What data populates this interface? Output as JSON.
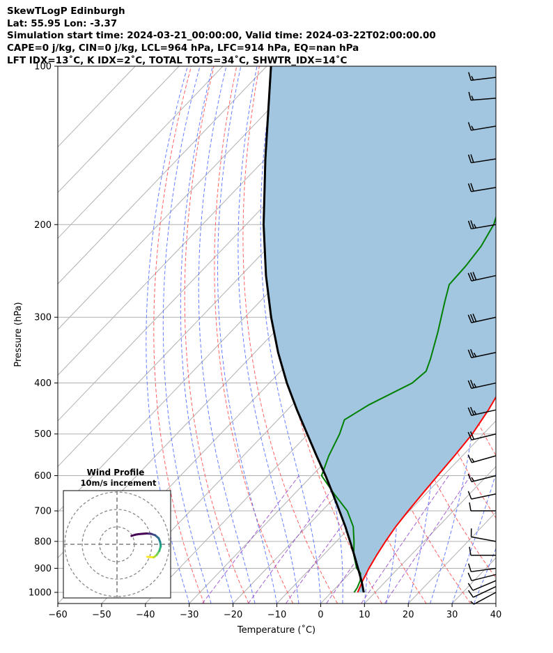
{
  "header": {
    "line1": "SkewTLogP Edinburgh",
    "line2": "Lat: 55.95   Lon: -3.37",
    "line3": "Simulation start time: 2024-03-21_00:00:00, Valid time: 2024-03-22T02:00:00.00",
    "line4": "CAPE=0 j/kg, CIN=0 j/kg, LCL=964 hPa, LFC=914 hPa, EQ=nan hPa",
    "line5": "LFT IDX=13˚C, K IDX=2˚C, TOTAL TOTS=34˚C, SHWTR_IDX=14˚C"
  },
  "chart_data": {
    "type": "line",
    "xlabel": "Temperature (˚C)",
    "ylabel": "Pressure (hPa)",
    "xlim": [
      -60,
      40
    ],
    "ylim": [
      1050,
      100
    ],
    "yscale": "log",
    "grid": true,
    "x_ticks": [
      -60,
      -50,
      -40,
      -30,
      -20,
      -10,
      0,
      10,
      20,
      30,
      40
    ],
    "x_tick_labels": [
      "−60",
      "−50",
      "−40",
      "−30",
      "−20",
      "−10",
      "0",
      "10",
      "20",
      "30",
      "40"
    ],
    "y_ticks": [
      1000,
      900,
      800,
      700,
      600,
      500,
      400,
      300,
      200,
      100
    ],
    "y_tick_labels": [
      "1000",
      "900",
      "800",
      "700",
      "600",
      "500",
      "400",
      "300",
      "200",
      "100"
    ],
    "series": [
      {
        "role": "temperature",
        "color": "#ff0000",
        "points": [
          [
            1000,
            6
          ],
          [
            950,
            4.6
          ],
          [
            900,
            3.3
          ],
          [
            850,
            2.2
          ],
          [
            800,
            1.2
          ],
          [
            750,
            0.3
          ],
          [
            700,
            -0.3
          ],
          [
            650,
            -0.8
          ],
          [
            600,
            -1.3
          ],
          [
            550,
            -1.8
          ],
          [
            500,
            -2.5
          ],
          [
            450,
            -4.1
          ],
          [
            400,
            -6.4
          ],
          [
            350,
            -8.1
          ],
          [
            300,
            -10.8
          ],
          [
            280,
            -12.5
          ],
          [
            260,
            -15.0
          ],
          [
            245,
            -16.6
          ],
          [
            230,
            -18.9
          ],
          [
            220,
            -19.7
          ],
          [
            210,
            -20.3
          ],
          [
            200,
            -22
          ],
          [
            180,
            -26
          ],
          [
            160,
            -30
          ],
          [
            150,
            -32.3
          ],
          [
            140,
            -35.3
          ],
          [
            120,
            -39.5
          ],
          [
            110,
            -43.3
          ],
          [
            105,
            -44.4
          ],
          [
            100,
            -44.4
          ]
        ]
      },
      {
        "role": "dewpoint",
        "color": "#008000",
        "points": [
          [
            1000,
            5.2
          ],
          [
            980,
            4.9
          ],
          [
            950,
            4.0
          ],
          [
            920,
            2.5
          ],
          [
            900,
            0.5
          ],
          [
            850,
            -3
          ],
          [
            800,
            -6
          ],
          [
            750,
            -9.4
          ],
          [
            700,
            -14.2
          ],
          [
            650,
            -20.9
          ],
          [
            600,
            -27.8
          ],
          [
            550,
            -30.5
          ],
          [
            500,
            -32.8
          ],
          [
            470,
            -34.8
          ],
          [
            440,
            -32.5
          ],
          [
            400,
            -27.4
          ],
          [
            380,
            -26.8
          ],
          [
            360,
            -28.5
          ],
          [
            320,
            -32.7
          ],
          [
            280,
            -37.8
          ],
          [
            260,
            -40.5
          ],
          [
            240,
            -40.8
          ],
          [
            220,
            -41.6
          ],
          [
            200,
            -43.5
          ],
          [
            180,
            -47
          ],
          [
            170,
            -48.5
          ],
          [
            160,
            -49.8
          ],
          [
            150,
            -49.6
          ],
          [
            140,
            -48.9
          ],
          [
            130,
            -48.7
          ],
          [
            120,
            -49.0
          ],
          [
            110,
            -49.5
          ],
          [
            100,
            -50.4
          ]
        ]
      },
      {
        "role": "parcel",
        "color": "#000000",
        "points": [
          [
            1000,
            7.4
          ],
          [
            964,
            5.2
          ],
          [
            950,
            4.3
          ],
          [
            900,
            0.8
          ],
          [
            850,
            -2.9
          ],
          [
            800,
            -6.9
          ],
          [
            750,
            -11.2
          ],
          [
            700,
            -16
          ],
          [
            650,
            -21.2
          ],
          [
            600,
            -26.9
          ],
          [
            550,
            -33.3
          ],
          [
            500,
            -40.2
          ],
          [
            450,
            -47.8
          ],
          [
            400,
            -56
          ],
          [
            350,
            -64.7
          ],
          [
            300,
            -74
          ],
          [
            250,
            -84.3
          ],
          [
            200,
            -96
          ],
          [
            150,
            -110
          ],
          [
            100,
            -129
          ]
        ]
      }
    ],
    "shaded_region": {
      "between": [
        "parcel",
        "temperature"
      ],
      "color": "#a2c6df"
    },
    "wind_barbs": [
      {
        "p": 1000,
        "u": -13,
        "v": -7
      },
      {
        "p": 975,
        "u": -17,
        "v": -8
      },
      {
        "p": 950,
        "u": -19,
        "v": -8
      },
      {
        "p": 925,
        "u": -20,
        "v": -5
      },
      {
        "p": 900,
        "u": -22,
        "v": -3
      },
      {
        "p": 850,
        "u": -24,
        "v": 0
      },
      {
        "p": 800,
        "u": -22,
        "v": 4
      },
      {
        "p": 700,
        "u": -24,
        "v": 0
      },
      {
        "p": 650,
        "u": -24,
        "v": -5
      },
      {
        "p": 600,
        "u": -28,
        "v": -7
      },
      {
        "p": 550,
        "u": -32,
        "v": -9
      },
      {
        "p": 500,
        "u": -37,
        "v": -9
      },
      {
        "p": 450,
        "u": -44,
        "v": -10
      },
      {
        "p": 400,
        "u": -50,
        "v": -11
      },
      {
        "p": 350,
        "u": -52,
        "v": -11
      },
      {
        "p": 300,
        "u": -54,
        "v": -12
      },
      {
        "p": 250,
        "u": -55,
        "v": -12
      },
      {
        "p": 200,
        "u": -47,
        "v": -8
      },
      {
        "p": 170,
        "u": -42,
        "v": -7
      },
      {
        "p": 150,
        "u": -38,
        "v": -6
      },
      {
        "p": 130,
        "u": -30,
        "v": -5
      },
      {
        "p": 115,
        "u": -25,
        "v": -2
      },
      {
        "p": 105,
        "u": -25,
        "v": -3
      }
    ],
    "hodograph": {
      "title": "Wind Profile",
      "subtitle": "10m/s increment",
      "ring_interval": 10,
      "points": [
        [
          17.4,
          -7.2
        ],
        [
          21.1,
          -7.5
        ],
        [
          22.8,
          -6.1
        ],
        [
          24.3,
          -3.8
        ],
        [
          25.1,
          -1.2
        ],
        [
          24.8,
          1.3
        ],
        [
          23.9,
          3.5
        ],
        [
          21.9,
          5.2
        ],
        [
          19.6,
          6.0
        ],
        [
          17,
          6.2
        ],
        [
          14.5,
          6.0
        ],
        [
          12.3,
          5.8
        ],
        [
          10.5,
          5.5
        ],
        [
          8.3,
          4.8
        ]
      ]
    }
  }
}
